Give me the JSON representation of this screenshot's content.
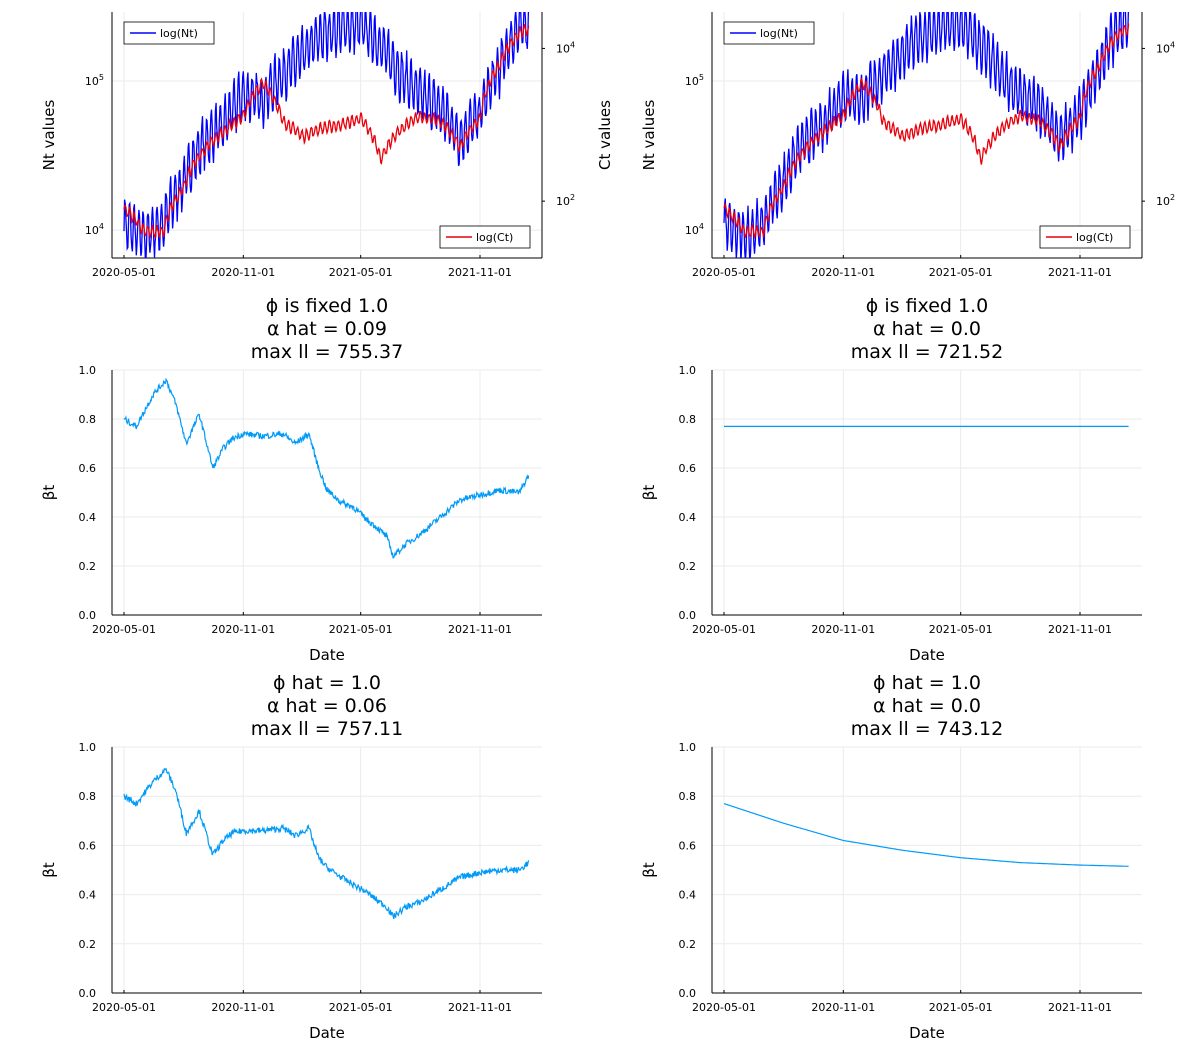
{
  "chart_data": [
    {
      "type": "line",
      "panel": "top-left",
      "dual_axis": true,
      "x_ticks": [
        "2020-05-01",
        "2020-11-01",
        "2021-05-01",
        "2021-11-01"
      ],
      "ylabel": "Nt values",
      "y2label": "Ct values",
      "y_scale": "log",
      "y_ticks": [
        {
          "base": "10",
          "exp": "4",
          "value": 10000
        },
        {
          "base": "10",
          "exp": "5",
          "value": 100000
        }
      ],
      "y2_scale": "log",
      "y2_ticks": [
        {
          "base": "10",
          "exp": "2",
          "value": 100
        },
        {
          "base": "10",
          "exp": "4",
          "value": 10000
        }
      ],
      "series": [
        {
          "name": "log(Nt)",
          "color": "#0000ff",
          "axis": "left",
          "x": [
            "2020-05-01",
            "2020-06-01",
            "2020-07-01",
            "2020-08-01",
            "2020-09-01",
            "2020-10-01",
            "2020-11-01",
            "2020-12-01",
            "2021-01-01",
            "2021-02-01",
            "2021-03-01",
            "2021-04-01",
            "2021-05-01",
            "2021-06-01",
            "2021-07-01",
            "2021-08-01",
            "2021-09-01",
            "2021-10-01",
            "2021-11-01",
            "2021-12-01",
            "2022-01-01",
            "2022-01-15"
          ],
          "y": [
            11000,
            9000,
            11000,
            21000,
            38000,
            50000,
            80000,
            75000,
            110000,
            150000,
            200000,
            230000,
            240000,
            170000,
            110000,
            80000,
            65000,
            40000,
            60000,
            120000,
            230000,
            240000
          ]
        },
        {
          "name": "log(Ct)",
          "color": "#e8000b",
          "axis": "right",
          "x": [
            "2020-05-01",
            "2020-06-01",
            "2020-07-01",
            "2020-08-01",
            "2020-09-01",
            "2020-10-01",
            "2020-11-01",
            "2020-12-01",
            "2021-01-01",
            "2021-02-01",
            "2021-03-01",
            "2021-04-01",
            "2021-05-01",
            "2021-06-01",
            "2021-07-01",
            "2021-08-01",
            "2021-09-01",
            "2021-10-01",
            "2021-11-01",
            "2021-12-01",
            "2022-01-01",
            "2022-01-15"
          ],
          "y": [
            80,
            40,
            40,
            150,
            450,
            800,
            1300,
            3500,
            1100,
            700,
            900,
            1000,
            1200,
            350,
            850,
            1300,
            1100,
            500,
            1200,
            6000,
            16000,
            18000
          ]
        }
      ],
      "legend": [
        {
          "label": "log(Nt)",
          "position": "top-left"
        },
        {
          "label": "log(Ct)",
          "position": "bottom-right"
        }
      ],
      "grid": true
    },
    {
      "type": "line",
      "panel": "top-right",
      "dual_axis": true,
      "x_ticks": [
        "2020-05-01",
        "2020-11-01",
        "2021-05-01",
        "2021-11-01"
      ],
      "ylabel": "Nt values",
      "y2label": "",
      "y_scale": "log",
      "y_ticks": [
        {
          "base": "10",
          "exp": "4",
          "value": 10000
        },
        {
          "base": "10",
          "exp": "5",
          "value": 100000
        }
      ],
      "y2_scale": "log",
      "y2_ticks": [
        {
          "base": "10",
          "exp": "2",
          "value": 100
        },
        {
          "base": "10",
          "exp": "4",
          "value": 10000
        }
      ],
      "series": [
        {
          "name": "log(Nt)",
          "color": "#0000ff",
          "axis": "left",
          "x": [
            "2020-05-01",
            "2020-06-01",
            "2020-07-01",
            "2020-08-01",
            "2020-09-01",
            "2020-10-01",
            "2020-11-01",
            "2020-12-01",
            "2021-01-01",
            "2021-02-01",
            "2021-03-01",
            "2021-04-01",
            "2021-05-01",
            "2021-06-01",
            "2021-07-01",
            "2021-08-01",
            "2021-09-01",
            "2021-10-01",
            "2021-11-01",
            "2021-12-01",
            "2022-01-01",
            "2022-01-15"
          ],
          "y": [
            11000,
            9000,
            11000,
            21000,
            38000,
            50000,
            80000,
            75000,
            110000,
            150000,
            200000,
            230000,
            240000,
            170000,
            110000,
            80000,
            65000,
            40000,
            60000,
            120000,
            230000,
            240000
          ]
        },
        {
          "name": "log(Ct)",
          "color": "#e8000b",
          "axis": "right",
          "x": [
            "2020-05-01",
            "2020-06-01",
            "2020-07-01",
            "2020-08-01",
            "2020-09-01",
            "2020-10-01",
            "2020-11-01",
            "2020-12-01",
            "2021-01-01",
            "2021-02-01",
            "2021-03-01",
            "2021-04-01",
            "2021-05-01",
            "2021-06-01",
            "2021-07-01",
            "2021-08-01",
            "2021-09-01",
            "2021-10-01",
            "2021-11-01",
            "2021-12-01",
            "2022-01-01",
            "2022-01-15"
          ],
          "y": [
            80,
            40,
            40,
            150,
            450,
            800,
            1300,
            3500,
            1100,
            700,
            900,
            1000,
            1200,
            350,
            850,
            1300,
            1100,
            500,
            1200,
            6000,
            16000,
            18000
          ]
        }
      ],
      "legend": [
        {
          "label": "log(Nt)",
          "position": "top-left"
        },
        {
          "label": "log(Ct)",
          "position": "bottom-right"
        }
      ],
      "grid": true
    },
    {
      "type": "line",
      "panel": "middle-left",
      "title": [
        "ϕ is fixed 1.0",
        "α hat = 0.09",
        "max ll = 755.37"
      ],
      "xlabel": "Date",
      "ylabel": "βt",
      "x_ticks": [
        "2020-05-01",
        "2020-11-01",
        "2021-05-01",
        "2021-11-01"
      ],
      "ylim": [
        0,
        1
      ],
      "y_ticks": [
        "0.0",
        "0.2",
        "0.4",
        "0.6",
        "0.8",
        "1.0"
      ],
      "series": [
        {
          "color": "#009af9",
          "x": [
            "2020-05-01",
            "2020-05-20",
            "2020-06-15",
            "2020-07-05",
            "2020-07-20",
            "2020-08-05",
            "2020-08-25",
            "2020-09-15",
            "2020-10-01",
            "2020-10-15",
            "2020-11-01",
            "2020-12-01",
            "2021-01-01",
            "2021-01-20",
            "2021-02-10",
            "2021-02-25",
            "2021-03-10",
            "2021-04-01",
            "2021-04-20",
            "2021-05-10",
            "2021-05-25",
            "2021-06-10",
            "2021-06-20",
            "2021-07-10",
            "2021-08-01",
            "2021-09-01",
            "2021-10-01",
            "2021-11-01",
            "2021-12-01",
            "2022-01-01",
            "2022-01-15"
          ],
          "y": [
            0.8,
            0.77,
            0.9,
            0.96,
            0.86,
            0.7,
            0.82,
            0.6,
            0.68,
            0.72,
            0.74,
            0.73,
            0.74,
            0.7,
            0.74,
            0.6,
            0.51,
            0.46,
            0.44,
            0.39,
            0.36,
            0.32,
            0.24,
            0.29,
            0.33,
            0.4,
            0.47,
            0.49,
            0.51,
            0.5,
            0.57
          ]
        }
      ],
      "grid": true
    },
    {
      "type": "line",
      "panel": "middle-right",
      "title": [
        "ϕ is fixed 1.0",
        "α hat = 0.0",
        "max ll = 721.52"
      ],
      "xlabel": "Date",
      "ylabel": "βt",
      "x_ticks": [
        "2020-05-01",
        "2020-11-01",
        "2021-05-01",
        "2021-11-01"
      ],
      "ylim": [
        0,
        1
      ],
      "y_ticks": [
        "0.0",
        "0.2",
        "0.4",
        "0.6",
        "0.8",
        "1.0"
      ],
      "series": [
        {
          "color": "#009af9",
          "x": [
            "2020-05-01",
            "2022-01-15"
          ],
          "y": [
            0.77,
            0.77
          ]
        }
      ],
      "grid": true
    },
    {
      "type": "line",
      "panel": "bottom-left",
      "title": [
        "ϕ hat = 1.0",
        "α hat = 0.06",
        "max ll = 757.11"
      ],
      "xlabel": "Date",
      "ylabel": "βt",
      "x_ticks": [
        "2020-05-01",
        "2020-11-01",
        "2021-05-01",
        "2021-11-01"
      ],
      "ylim": [
        0,
        1
      ],
      "y_ticks": [
        "0.0",
        "0.2",
        "0.4",
        "0.6",
        "0.8",
        "1.0"
      ],
      "series": [
        {
          "color": "#009af9",
          "x": [
            "2020-05-01",
            "2020-05-20",
            "2020-06-15",
            "2020-07-05",
            "2020-07-20",
            "2020-08-05",
            "2020-08-25",
            "2020-09-15",
            "2020-10-01",
            "2020-10-15",
            "2020-11-01",
            "2020-12-01",
            "2021-01-01",
            "2021-01-20",
            "2021-02-10",
            "2021-02-25",
            "2021-03-10",
            "2021-04-01",
            "2021-04-20",
            "2021-05-10",
            "2021-05-25",
            "2021-06-10",
            "2021-06-20",
            "2021-07-10",
            "2021-08-01",
            "2021-09-01",
            "2021-10-01",
            "2021-11-01",
            "2021-12-01",
            "2022-01-01",
            "2022-01-15"
          ],
          "y": [
            0.8,
            0.77,
            0.86,
            0.91,
            0.82,
            0.65,
            0.74,
            0.56,
            0.62,
            0.65,
            0.66,
            0.66,
            0.67,
            0.64,
            0.67,
            0.55,
            0.51,
            0.47,
            0.44,
            0.41,
            0.38,
            0.35,
            0.31,
            0.35,
            0.37,
            0.42,
            0.47,
            0.49,
            0.5,
            0.5,
            0.53
          ]
        }
      ],
      "grid": true
    },
    {
      "type": "line",
      "panel": "bottom-right",
      "title": [
        "ϕ hat = 1.0",
        "α hat = 0.0",
        "max ll = 743.12"
      ],
      "xlabel": "Date",
      "ylabel": "βt",
      "x_ticks": [
        "2020-05-01",
        "2020-11-01",
        "2021-05-01",
        "2021-11-01"
      ],
      "ylim": [
        0,
        1
      ],
      "y_ticks": [
        "0.0",
        "0.2",
        "0.4",
        "0.6",
        "0.8",
        "1.0"
      ],
      "series": [
        {
          "color": "#009af9",
          "x": [
            "2020-05-01",
            "2020-08-01",
            "2020-11-01",
            "2021-02-01",
            "2021-05-01",
            "2021-08-01",
            "2021-11-01",
            "2022-01-15"
          ],
          "y": [
            0.77,
            0.69,
            0.62,
            0.58,
            0.55,
            0.53,
            0.52,
            0.515
          ]
        }
      ],
      "grid": true
    }
  ]
}
